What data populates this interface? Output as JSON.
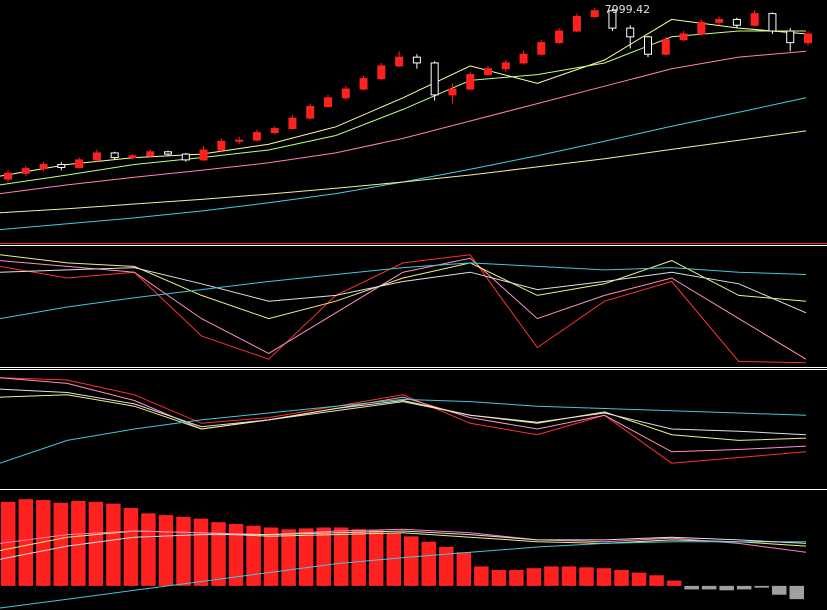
{
  "chart_data": [
    {
      "type": "candlestick",
      "ylim": [
        4000,
        8100
      ],
      "up_color": "#ff2020",
      "down_color": "#ffffff",
      "open": [
        5050,
        5150,
        5230,
        5300,
        5250,
        5380,
        5500,
        5420,
        5450,
        5520,
        5480,
        5380,
        5550,
        5700,
        5720,
        5850,
        5920,
        6100,
        6300,
        6450,
        6600,
        6780,
        7000,
        7150,
        7050,
        6500,
        6600,
        6850,
        6950,
        7050,
        7200,
        7400,
        7600,
        7850,
        7950,
        7650,
        7500,
        7200,
        7450,
        7550,
        7750,
        7800,
        7700,
        7900,
        7600,
        7400
      ],
      "close": [
        5150,
        5230,
        5300,
        5250,
        5380,
        5500,
        5420,
        5450,
        5520,
        5480,
        5380,
        5550,
        5700,
        5720,
        5850,
        5920,
        6100,
        6300,
        6450,
        6600,
        6780,
        7000,
        7150,
        7050,
        6500,
        6600,
        6850,
        6950,
        7050,
        7200,
        7400,
        7600,
        7850,
        7950,
        7650,
        7500,
        7200,
        7450,
        7550,
        7750,
        7800,
        7700,
        7900,
        7600,
        7400,
        7550
      ],
      "high": [
        5200,
        5280,
        5350,
        5340,
        5420,
        5560,
        5520,
        5480,
        5560,
        5540,
        5500,
        5620,
        5750,
        5780,
        5900,
        5960,
        6150,
        6350,
        6500,
        6650,
        6830,
        7050,
        7250,
        7200,
        7080,
        6700,
        6900,
        7000,
        7100,
        7260,
        7450,
        7650,
        7900,
        7999.42,
        7980,
        7700,
        7520,
        7500,
        7600,
        7800,
        7850,
        7830,
        7960,
        7920,
        7650,
        7600
      ],
      "low": [
        4990,
        5100,
        5180,
        5200,
        5230,
        5350,
        5380,
        5390,
        5420,
        5440,
        5350,
        5360,
        5520,
        5650,
        5700,
        5820,
        5900,
        6080,
        6280,
        6420,
        6580,
        6760,
        6980,
        6950,
        6400,
        6350,
        6580,
        6820,
        6900,
        7020,
        7180,
        7380,
        7580,
        7820,
        7600,
        7300,
        7150,
        7180,
        7420,
        7520,
        7700,
        7650,
        7680,
        7550,
        7250,
        7350
      ],
      "series": [
        {
          "color": "#ffffa0",
          "values": [
            5100,
            5300,
            5420,
            5480,
            5650,
            5950,
            6450,
            7000,
            6700,
            7100,
            7800,
            7650,
            7550
          ]
        },
        {
          "color": "#c0ff80",
          "values": [
            4950,
            5120,
            5300,
            5420,
            5550,
            5800,
            6250,
            6750,
            6850,
            7050,
            7500,
            7600,
            7600
          ]
        },
        {
          "color": "#ff80c0",
          "values": [
            4800,
            4950,
            5080,
            5200,
            5330,
            5500,
            5750,
            6050,
            6350,
            6650,
            6950,
            7150,
            7250
          ]
        },
        {
          "color": "#40d0e0",
          "values": [
            4180,
            4280,
            4380,
            4500,
            4640,
            4800,
            5000,
            5220,
            5450,
            5700,
            5960,
            6200,
            6450
          ]
        },
        {
          "color": "#f0f0a0",
          "values": [
            4470,
            4540,
            4620,
            4700,
            4790,
            4890,
            5000,
            5120,
            5260,
            5400,
            5560,
            5720,
            5880
          ]
        }
      ]
    },
    {
      "type": "line",
      "ylim": [
        0,
        100
      ],
      "series": [
        {
          "color": "#ff3030",
          "values": [
            85,
            75,
            80,
            25,
            5,
            60,
            88,
            95,
            15,
            55,
            72,
            3,
            2
          ]
        },
        {
          "color": "#ff90c0",
          "values": [
            90,
            85,
            80,
            40,
            10,
            45,
            80,
            92,
            40,
            60,
            75,
            40,
            5
          ]
        },
        {
          "color": "#f0f080",
          "values": [
            95,
            88,
            85,
            60,
            40,
            55,
            75,
            88,
            60,
            70,
            90,
            60,
            55
          ]
        },
        {
          "color": "#e0e0e0",
          "values": [
            80,
            82,
            84,
            70,
            55,
            60,
            72,
            80,
            65,
            72,
            80,
            70,
            45
          ]
        },
        {
          "color": "#40c8e0",
          "values": [
            40,
            50,
            58,
            65,
            72,
            78,
            84,
            88,
            85,
            82,
            84,
            80,
            78
          ]
        }
      ]
    },
    {
      "type": "line",
      "ylim": [
        0,
        100
      ],
      "series": [
        {
          "color": "#ff3030",
          "values": [
            95,
            93,
            80,
            55,
            60,
            70,
            80,
            55,
            45,
            62,
            20,
            25,
            30
          ]
        },
        {
          "color": "#ff90c0",
          "values": [
            95,
            90,
            75,
            50,
            58,
            68,
            78,
            60,
            50,
            62,
            30,
            32,
            35
          ]
        },
        {
          "color": "#f0f080",
          "values": [
            78,
            80,
            70,
            50,
            58,
            68,
            75,
            62,
            55,
            65,
            45,
            40,
            42
          ]
        },
        {
          "color": "#e0e0e0",
          "values": [
            85,
            82,
            72,
            52,
            58,
            66,
            74,
            62,
            56,
            64,
            50,
            48,
            45
          ]
        },
        {
          "color": "#40c8e0",
          "values": [
            20,
            40,
            50,
            58,
            64,
            70,
            76,
            74,
            70,
            68,
            66,
            64,
            62
          ]
        }
      ]
    },
    {
      "type": "bar",
      "ylim": [
        -25,
        105
      ],
      "up_color": "#ff2020",
      "down_color": "#a0a0a0",
      "values": [
        95,
        98,
        97,
        94,
        96,
        95,
        93,
        88,
        82,
        80,
        78,
        76,
        72,
        70,
        68,
        66,
        64,
        65,
        66,
        66,
        64,
        63,
        60,
        56,
        50,
        44,
        38,
        22,
        18,
        18,
        20,
        22,
        22,
        21,
        20,
        18,
        15,
        12,
        6,
        -4,
        -4,
        -5,
        -4,
        -2,
        -10,
        -15
      ],
      "series": [
        {
          "color": "#f0f080",
          "values": [
            40,
            55,
            62,
            60,
            56,
            58,
            60,
            55,
            50,
            48,
            52,
            50,
            45
          ]
        },
        {
          "color": "#ff80c0",
          "values": [
            48,
            58,
            62,
            60,
            58,
            62,
            64,
            60,
            52,
            50,
            54,
            48,
            38
          ]
        },
        {
          "color": "#40c8e0",
          "values": [
            -25,
            -15,
            -5,
            5,
            15,
            25,
            32,
            38,
            44,
            48,
            50,
            50,
            50
          ]
        },
        {
          "color": "#e0e0e0",
          "values": [
            30,
            45,
            55,
            58,
            58,
            60,
            62,
            58,
            52,
            52,
            55,
            52,
            48
          ]
        }
      ]
    }
  ]
}
